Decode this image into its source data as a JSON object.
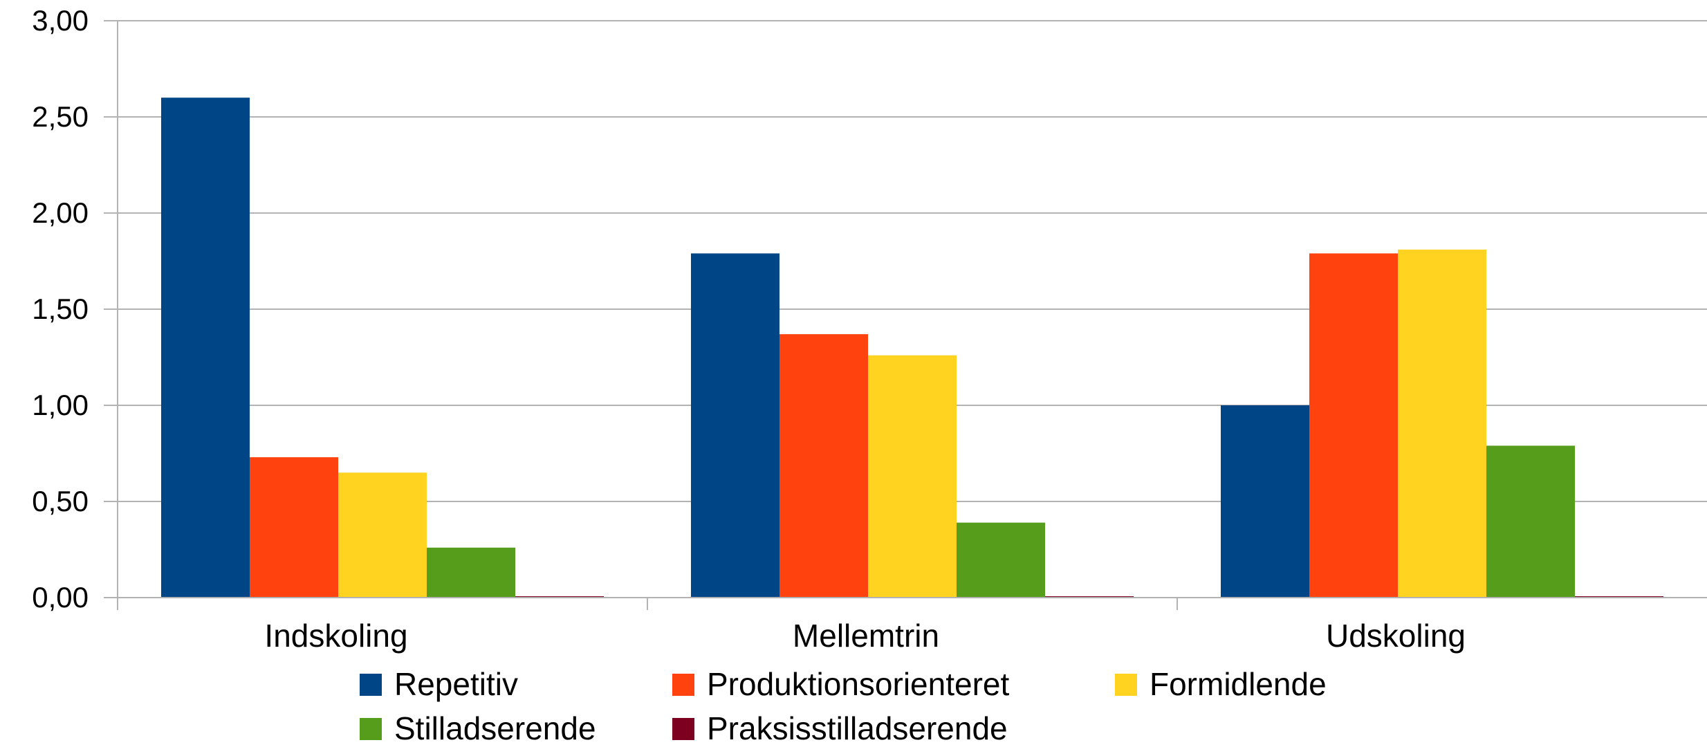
{
  "chart_data": {
    "type": "bar",
    "title": "",
    "xlabel": "",
    "ylabel": "",
    "ylim": [
      0,
      3
    ],
    "y_ticks": [
      "0,00",
      "0,50",
      "1,00",
      "1,50",
      "2,00",
      "2,50",
      "3,00"
    ],
    "categories": [
      "Indskoling",
      "Mellemtrin",
      "Udskoling"
    ],
    "grid": true,
    "legend_position": "bottom",
    "series": [
      {
        "name": "Repetitiv",
        "color": "#004586",
        "values": [
          2.6,
          1.79,
          1.0
        ]
      },
      {
        "name": "Produktionsorienteret",
        "color": "#ff420e",
        "values": [
          0.73,
          1.37,
          1.79
        ]
      },
      {
        "name": "Formidlende",
        "color": "#ffd320",
        "values": [
          0.65,
          1.26,
          1.81
        ]
      },
      {
        "name": "Stilladserende",
        "color": "#579d1c",
        "values": [
          0.26,
          0.39,
          0.79
        ]
      },
      {
        "name": "Praksisstilladserende",
        "color": "#7e0021",
        "values": [
          0.0,
          0.0,
          0.0
        ]
      }
    ]
  }
}
